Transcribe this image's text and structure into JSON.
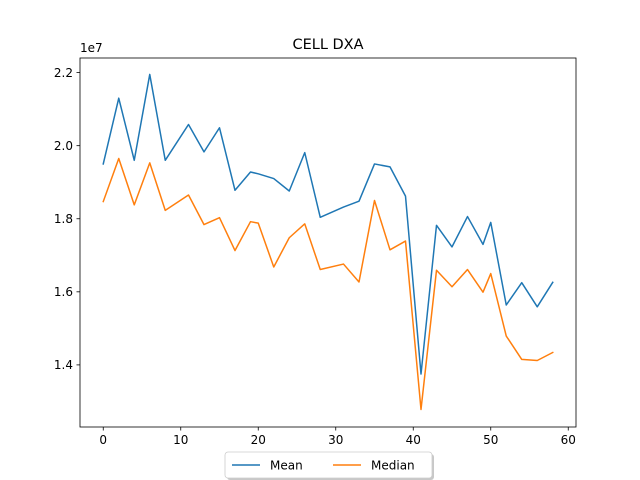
{
  "chart_data": {
    "type": "line",
    "title": "CELL DXA",
    "xlabel": "",
    "ylabel": "",
    "y_offset_label": "1e7",
    "xlim": [
      -3,
      61
    ],
    "ylim": [
      12300000,
      22400000
    ],
    "x_ticks": [
      0,
      10,
      20,
      30,
      40,
      50,
      60
    ],
    "y_ticks": [
      14000000,
      16000000,
      18000000,
      20000000,
      22000000
    ],
    "y_tick_labels": [
      "1.4",
      "1.6",
      "1.8",
      "2.0",
      "2.2"
    ],
    "grid": false,
    "legend_position": "bottom-center, below plot",
    "x": [
      0,
      2,
      4,
      6,
      8,
      11,
      13,
      15,
      17,
      19,
      20,
      22,
      24,
      26,
      28,
      31,
      33,
      35,
      37,
      39,
      41,
      43,
      45,
      47,
      49,
      50,
      52,
      54,
      56,
      58
    ],
    "series": [
      {
        "name": "Mean",
        "color": "#1f77b4",
        "values": [
          19500000,
          21300000,
          19600000,
          21950000,
          19600000,
          20580000,
          19830000,
          20490000,
          18780000,
          19280000,
          19230000,
          19100000,
          18760000,
          19810000,
          18040000,
          18320000,
          18480000,
          19500000,
          19420000,
          18620000,
          13750000,
          17820000,
          17230000,
          18060000,
          17300000,
          17900000,
          15640000,
          16250000,
          15590000,
          16260000
        ]
      },
      {
        "name": "Median",
        "color": "#ff7f0e",
        "values": [
          18470000,
          19650000,
          18380000,
          19530000,
          18230000,
          18650000,
          17840000,
          18030000,
          17130000,
          17920000,
          17880000,
          16680000,
          17480000,
          17860000,
          16610000,
          16760000,
          16270000,
          18500000,
          17150000,
          17390000,
          12780000,
          16590000,
          16140000,
          16610000,
          15990000,
          16500000,
          14790000,
          14150000,
          14120000,
          14340000
        ]
      }
    ]
  }
}
